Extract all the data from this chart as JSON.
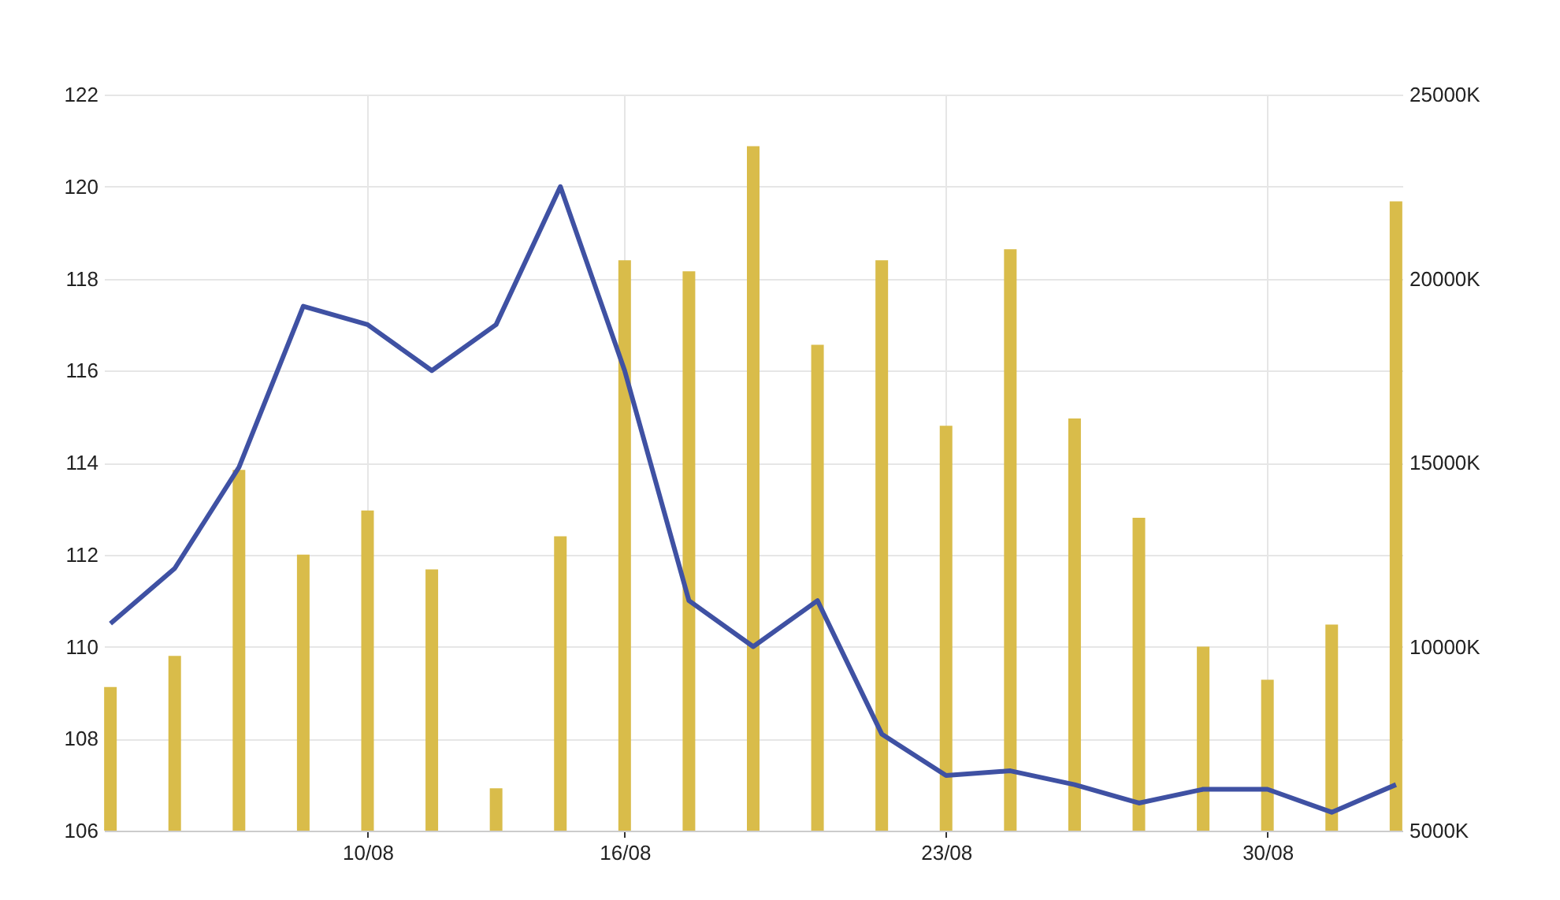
{
  "chart_data": {
    "type": "line",
    "categories": [
      null,
      null,
      null,
      null,
      "10/08",
      null,
      null,
      null,
      "16/08",
      null,
      null,
      null,
      null,
      "23/08",
      null,
      null,
      null,
      null,
      "30/08",
      null,
      null
    ],
    "series": [
      {
        "type": "bar",
        "axis": "y2",
        "color": "#d9bc4a",
        "values": [
          8900,
          9750,
          14800,
          12500,
          13700,
          12100,
          6150,
          13000,
          20500,
          20200,
          23600,
          18200,
          20500,
          16000,
          20800,
          16200,
          13500,
          10000,
          9100,
          10600,
          22100
        ]
      },
      {
        "type": "line",
        "color": "#3f51a3",
        "values": [
          110.5,
          111.7,
          113.9,
          117.4,
          117.0,
          116.0,
          117.0,
          120.0,
          116.0,
          111.0,
          110.0,
          111.0,
          108.1,
          107.2,
          107.3,
          107.0,
          106.6,
          106.9,
          106.9,
          106.4,
          107.0
        ]
      }
    ],
    "ylim": [
      106,
      122
    ],
    "yticks": [
      106,
      108,
      110,
      112,
      114,
      116,
      118,
      120,
      122
    ],
    "y2lim": [
      5000,
      25000
    ],
    "y2ticks": [
      {
        "value": 5000,
        "label": "5000K"
      },
      {
        "value": 10000,
        "label": "10000K"
      },
      {
        "value": 15000,
        "label": "15000K"
      },
      {
        "value": 20000,
        "label": "20000K"
      },
      {
        "value": 25000,
        "label": "25000K"
      }
    ],
    "grid": true
  }
}
